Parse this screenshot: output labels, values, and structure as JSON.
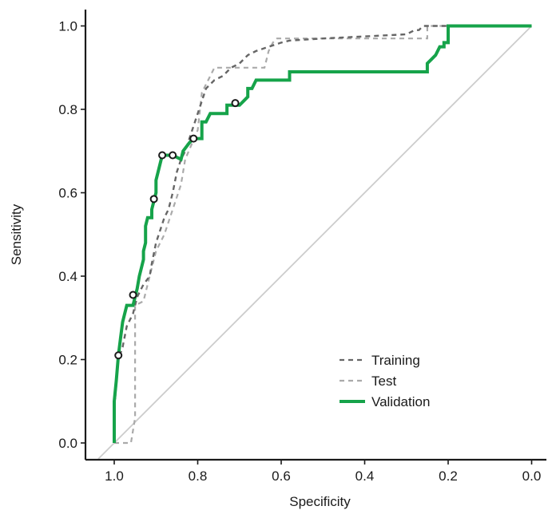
{
  "chart_data": {
    "type": "line",
    "title": "",
    "xlabel": "Specificity",
    "ylabel": "Sensitivity",
    "xlim": [
      1.05,
      0.0
    ],
    "ylim": [
      0.0,
      1.0
    ],
    "x_axis_reversed": true,
    "xticks": [
      1.0,
      0.8,
      0.6,
      0.4,
      0.2,
      0.0
    ],
    "xtick_labels": [
      "1.0",
      "0.8",
      "0.6",
      "0.4",
      "0.2",
      "0.0"
    ],
    "yticks": [
      0.0,
      0.2,
      0.4,
      0.6,
      0.8,
      1.0
    ],
    "ytick_labels": [
      "0.0",
      "0.2",
      "0.4",
      "0.6",
      "0.8",
      "1.0"
    ],
    "grid": false,
    "legend_position": "bottom-right",
    "reference_line": {
      "from": [
        1.0,
        0.0
      ],
      "to": [
        0.0,
        1.0
      ],
      "color": "#cccccc"
    },
    "series": [
      {
        "name": "Training",
        "color": "#666666",
        "style": "dashed",
        "points": [
          [
            1.0,
            0.0
          ],
          [
            1.0,
            0.08
          ],
          [
            0.995,
            0.14
          ],
          [
            0.99,
            0.2
          ],
          [
            0.98,
            0.23
          ],
          [
            0.97,
            0.28
          ],
          [
            0.955,
            0.31
          ],
          [
            0.945,
            0.35
          ],
          [
            0.93,
            0.38
          ],
          [
            0.915,
            0.4
          ],
          [
            0.91,
            0.43
          ],
          [
            0.9,
            0.48
          ],
          [
            0.89,
            0.51
          ],
          [
            0.88,
            0.54
          ],
          [
            0.87,
            0.56
          ],
          [
            0.86,
            0.6
          ],
          [
            0.85,
            0.65
          ],
          [
            0.84,
            0.68
          ],
          [
            0.83,
            0.7
          ],
          [
            0.82,
            0.73
          ],
          [
            0.81,
            0.76
          ],
          [
            0.8,
            0.79
          ],
          [
            0.79,
            0.82
          ],
          [
            0.78,
            0.85
          ],
          [
            0.76,
            0.87
          ],
          [
            0.74,
            0.88
          ],
          [
            0.72,
            0.9
          ],
          [
            0.7,
            0.91
          ],
          [
            0.68,
            0.93
          ],
          [
            0.66,
            0.94
          ],
          [
            0.63,
            0.95
          ],
          [
            0.6,
            0.96
          ],
          [
            0.58,
            0.965
          ],
          [
            0.5,
            0.97
          ],
          [
            0.4,
            0.975
          ],
          [
            0.3,
            0.98
          ],
          [
            0.28,
            0.99
          ],
          [
            0.27,
            0.99
          ],
          [
            0.26,
            1.0
          ],
          [
            0.0,
            1.0
          ]
        ]
      },
      {
        "name": "Test",
        "color": "#aaaaaa",
        "style": "dashed",
        "points": [
          [
            1.0,
            0.0
          ],
          [
            0.96,
            0.0
          ],
          [
            0.95,
            0.06
          ],
          [
            0.95,
            0.33
          ],
          [
            0.93,
            0.34
          ],
          [
            0.92,
            0.38
          ],
          [
            0.9,
            0.46
          ],
          [
            0.88,
            0.5
          ],
          [
            0.86,
            0.56
          ],
          [
            0.84,
            0.62
          ],
          [
            0.83,
            0.68
          ],
          [
            0.8,
            0.75
          ],
          [
            0.79,
            0.84
          ],
          [
            0.78,
            0.86
          ],
          [
            0.77,
            0.88
          ],
          [
            0.76,
            0.9
          ],
          [
            0.64,
            0.9
          ],
          [
            0.63,
            0.94
          ],
          [
            0.62,
            0.96
          ],
          [
            0.61,
            0.97
          ],
          [
            0.25,
            0.97
          ],
          [
            0.25,
            1.0
          ],
          [
            0.0,
            1.0
          ]
        ]
      },
      {
        "name": "Validation",
        "color": "#16a34a",
        "style": "solid",
        "points": [
          [
            1.0,
            0.0
          ],
          [
            1.0,
            0.1
          ],
          [
            0.995,
            0.15
          ],
          [
            0.99,
            0.21
          ],
          [
            0.985,
            0.25
          ],
          [
            0.98,
            0.29
          ],
          [
            0.975,
            0.31
          ],
          [
            0.97,
            0.33
          ],
          [
            0.955,
            0.33
          ],
          [
            0.95,
            0.35
          ],
          [
            0.945,
            0.37
          ],
          [
            0.94,
            0.4
          ],
          [
            0.935,
            0.42
          ],
          [
            0.93,
            0.44
          ],
          [
            0.93,
            0.46
          ],
          [
            0.925,
            0.48
          ],
          [
            0.925,
            0.52
          ],
          [
            0.92,
            0.54
          ],
          [
            0.91,
            0.54
          ],
          [
            0.91,
            0.56
          ],
          [
            0.905,
            0.58
          ],
          [
            0.9,
            0.6
          ],
          [
            0.9,
            0.63
          ],
          [
            0.895,
            0.65
          ],
          [
            0.89,
            0.67
          ],
          [
            0.885,
            0.69
          ],
          [
            0.86,
            0.69
          ],
          [
            0.84,
            0.68
          ],
          [
            0.835,
            0.7
          ],
          [
            0.82,
            0.72
          ],
          [
            0.81,
            0.73
          ],
          [
            0.79,
            0.73
          ],
          [
            0.79,
            0.77
          ],
          [
            0.78,
            0.77
          ],
          [
            0.77,
            0.79
          ],
          [
            0.73,
            0.79
          ],
          [
            0.73,
            0.81
          ],
          [
            0.71,
            0.81
          ],
          [
            0.7,
            0.81
          ],
          [
            0.69,
            0.82
          ],
          [
            0.68,
            0.83
          ],
          [
            0.68,
            0.85
          ],
          [
            0.67,
            0.85
          ],
          [
            0.66,
            0.87
          ],
          [
            0.58,
            0.87
          ],
          [
            0.58,
            0.89
          ],
          [
            0.25,
            0.89
          ],
          [
            0.25,
            0.91
          ],
          [
            0.24,
            0.92
          ],
          [
            0.23,
            0.93
          ],
          [
            0.22,
            0.95
          ],
          [
            0.21,
            0.95
          ],
          [
            0.21,
            0.96
          ],
          [
            0.2,
            0.96
          ],
          [
            0.2,
            1.0
          ],
          [
            0.0,
            1.0
          ]
        ],
        "markers": [
          [
            0.99,
            0.21
          ],
          [
            0.955,
            0.355
          ],
          [
            0.905,
            0.585
          ],
          [
            0.885,
            0.69
          ],
          [
            0.86,
            0.69
          ],
          [
            0.81,
            0.73
          ],
          [
            0.71,
            0.815
          ]
        ]
      }
    ]
  }
}
